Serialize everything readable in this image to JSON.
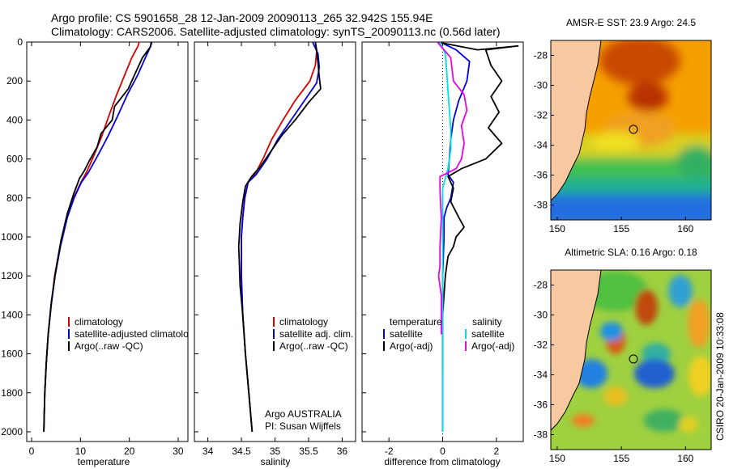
{
  "header": {
    "title_line1": "Argo profile: CS 5901658_28 12-Jan-2009 20090113_265 32.942S 155.94E",
    "title_line2": "Climatology: CARS2006. Satellite-adjusted climatology: synTS_20090113.nc (0.56d later)"
  },
  "colors": {
    "climatology": "#dd0000",
    "satellite": "#0000dd",
    "argo": "#000000",
    "sat_cyan": "#00e0e0",
    "argo_magenta": "#ee00ee",
    "land": "#f8c8a0"
  },
  "chart_data": [
    {
      "id": "temperature",
      "type": "line",
      "xlabel": "temperature",
      "ylabel": "",
      "xlim": [
        -1,
        32
      ],
      "ylim": [
        2050,
        0
      ],
      "xticks": [
        "0",
        "10",
        "20",
        "30"
      ],
      "xtick_values": [
        0,
        10,
        20,
        30
      ],
      "yticks": [
        "0",
        "200",
        "400",
        "600",
        "800",
        "1000",
        "1200",
        "1400",
        "1600",
        "1800",
        "2000"
      ],
      "ytick_values": [
        0,
        200,
        400,
        600,
        800,
        1000,
        1200,
        1400,
        1600,
        1800,
        2000
      ],
      "series": [
        {
          "name": "climatology",
          "color": "#dd0000",
          "points": [
            [
              22,
              0
            ],
            [
              21.8,
              20
            ],
            [
              20.5,
              80
            ],
            [
              19.2,
              160
            ],
            [
              17.4,
              270
            ],
            [
              15.8,
              380
            ],
            [
              14.4,
              480
            ],
            [
              12.8,
              580
            ],
            [
              11.2,
              670
            ],
            [
              10.1,
              720
            ],
            [
              8.6,
              800
            ],
            [
              7.2,
              900
            ],
            [
              5.8,
              1050
            ],
            [
              4.7,
              1200
            ],
            [
              4,
              1350
            ],
            [
              3.4,
              1500
            ],
            [
              3,
              1650
            ],
            [
              2.7,
              1800
            ],
            [
              2.5,
              2000
            ]
          ]
        },
        {
          "name": "satellite-adjusted climatology",
          "color": "#0000dd",
          "points": [
            [
              24.6,
              0
            ],
            [
              24.4,
              20
            ],
            [
              23.3,
              80
            ],
            [
              21.7,
              170
            ],
            [
              19.6,
              270
            ],
            [
              17.6,
              380
            ],
            [
              15.7,
              480
            ],
            [
              13.6,
              580
            ],
            [
              11.6,
              670
            ],
            [
              10.2,
              720
            ],
            [
              8.7,
              800
            ],
            [
              7.3,
              900
            ],
            [
              5.9,
              1050
            ],
            [
              4.8,
              1200
            ],
            [
              4,
              1350
            ],
            [
              3.4,
              1500
            ],
            [
              3,
              1650
            ],
            [
              2.7,
              1800
            ],
            [
              2.5,
              2000
            ]
          ]
        },
        {
          "name": "Argo(..raw -QC)",
          "color": "#000000",
          "points": [
            [
              24.5,
              0
            ],
            [
              24.3,
              25
            ],
            [
              22.7,
              80
            ],
            [
              21.4,
              150
            ],
            [
              19.8,
              240
            ],
            [
              17,
              330
            ],
            [
              16.5,
              400
            ],
            [
              14.2,
              470
            ],
            [
              13.4,
              540
            ],
            [
              11.8,
              610
            ],
            [
              10.8,
              660
            ],
            [
              9.8,
              700
            ],
            [
              8.6,
              780
            ],
            [
              7.3,
              880
            ],
            [
              6,
              1020
            ],
            [
              4.9,
              1180
            ],
            [
              4,
              1340
            ],
            [
              3.4,
              1500
            ],
            [
              3,
              1650
            ],
            [
              2.7,
              1800
            ],
            [
              2.5,
              2000
            ]
          ]
        }
      ],
      "legend_labels": [
        "climatology",
        "satellite-adjusted climatology",
        "Argo(..raw -QC)"
      ]
    },
    {
      "id": "salinity",
      "type": "line",
      "xlabel": "salinity",
      "xlim": [
        33.8,
        36.2
      ],
      "ylim": [
        2050,
        0
      ],
      "xticks": [
        "34",
        "34.5",
        "35",
        "35.5",
        "36"
      ],
      "xtick_values": [
        34,
        34.5,
        35,
        35.5,
        36
      ],
      "series": [
        {
          "name": "climatology",
          "color": "#dd0000",
          "points": [
            [
              35.6,
              0
            ],
            [
              35.62,
              50
            ],
            [
              35.6,
              120
            ],
            [
              35.52,
              200
            ],
            [
              35.3,
              300
            ],
            [
              35.12,
              400
            ],
            [
              34.95,
              500
            ],
            [
              34.82,
              600
            ],
            [
              34.7,
              680
            ],
            [
              34.6,
              720
            ],
            [
              34.55,
              800
            ],
            [
              34.52,
              900
            ],
            [
              34.5,
              1000
            ],
            [
              34.5,
              1100
            ],
            [
              34.5,
              1200
            ],
            [
              34.52,
              1400
            ],
            [
              34.56,
              1600
            ],
            [
              34.61,
              1800
            ],
            [
              34.66,
              2000
            ]
          ]
        },
        {
          "name": "satellite adj. clim.",
          "color": "#0000dd",
          "points": [
            [
              35.56,
              0
            ],
            [
              35.64,
              60
            ],
            [
              35.66,
              130
            ],
            [
              35.62,
              210
            ],
            [
              35.44,
              300
            ],
            [
              35.24,
              400
            ],
            [
              35.04,
              500
            ],
            [
              34.88,
              600
            ],
            [
              34.72,
              680
            ],
            [
              34.6,
              720
            ],
            [
              34.55,
              800
            ],
            [
              34.52,
              900
            ],
            [
              34.5,
              1000
            ],
            [
              34.5,
              1100
            ],
            [
              34.5,
              1200
            ],
            [
              34.52,
              1400
            ],
            [
              34.56,
              1600
            ],
            [
              34.61,
              1800
            ],
            [
              34.66,
              2000
            ]
          ]
        },
        {
          "name": "Argo(..raw -QC)",
          "color": "#000000",
          "points": [
            [
              35.6,
              0
            ],
            [
              35.62,
              40
            ],
            [
              35.64,
              110
            ],
            [
              35.66,
              180
            ],
            [
              35.68,
              240
            ],
            [
              35.5,
              310
            ],
            [
              35.3,
              400
            ],
            [
              35.1,
              480
            ],
            [
              34.92,
              570
            ],
            [
              34.78,
              640
            ],
            [
              34.65,
              690
            ],
            [
              34.56,
              740
            ],
            [
              34.52,
              820
            ],
            [
              34.48,
              930
            ],
            [
              34.46,
              1050
            ],
            [
              34.47,
              1150
            ],
            [
              34.48,
              1250
            ],
            [
              34.52,
              1400
            ],
            [
              34.56,
              1600
            ],
            [
              34.61,
              1800
            ],
            [
              34.66,
              2000
            ]
          ]
        }
      ],
      "legend_labels": [
        "climatology",
        "satellite adj. clim.",
        "Argo(..raw -QC)"
      ],
      "annotation": [
        "Argo AUSTRALIA",
        "PI: Susan Wijffels"
      ]
    },
    {
      "id": "difference",
      "type": "line",
      "xlabel": "difference from climatology",
      "xlim": [
        -3,
        3
      ],
      "ylim": [
        2050,
        0
      ],
      "xticks": [
        "-2",
        "0",
        "2"
      ],
      "xtick_values": [
        -2,
        0,
        2
      ],
      "zero_line": true,
      "series": [
        {
          "name": "temperature satellite",
          "color": "#0000dd",
          "points": [
            [
              -0.1,
              0
            ],
            [
              0.5,
              40
            ],
            [
              1,
              100
            ],
            [
              0.9,
              200
            ],
            [
              0.6,
              300
            ],
            [
              0.4,
              400
            ],
            [
              0.3,
              500
            ],
            [
              0.25,
              600
            ],
            [
              0.2,
              680
            ],
            [
              0.4,
              720
            ],
            [
              0.3,
              800
            ],
            [
              0.15,
              850
            ],
            [
              0.05,
              900
            ],
            [
              0.05,
              1000
            ],
            [
              0,
              1200
            ],
            [
              0,
              1500
            ],
            [
              0,
              2000
            ]
          ]
        },
        {
          "name": "temperature Argo(-adj)",
          "color": "#000000",
          "points": [
            [
              -0.2,
              0
            ],
            [
              1.3,
              40
            ],
            [
              2.8,
              20
            ],
            [
              1.6,
              40
            ],
            [
              1.8,
              120
            ],
            [
              2.2,
              200
            ],
            [
              1.8,
              280
            ],
            [
              2.1,
              360
            ],
            [
              1.7,
              440
            ],
            [
              2.2,
              520
            ],
            [
              1.6,
              600
            ],
            [
              0.7,
              650
            ],
            [
              0.2,
              690
            ],
            [
              0.4,
              750
            ],
            [
              0.3,
              820
            ],
            [
              0.6,
              900
            ],
            [
              0.8,
              950
            ],
            [
              0.5,
              1000
            ],
            [
              0.4,
              1050
            ],
            [
              0.2,
              1100
            ],
            [
              0.1,
              1200
            ],
            [
              0,
              1400
            ],
            [
              0,
              1600
            ],
            [
              0,
              1700
            ]
          ]
        },
        {
          "name": "salinity satellite",
          "color": "#00e0e0",
          "points": [
            [
              -0.1,
              0
            ],
            [
              0.1,
              60
            ],
            [
              0.15,
              150
            ],
            [
              0.2,
              250
            ],
            [
              0.25,
              350
            ],
            [
              0.3,
              450
            ],
            [
              0.3,
              550
            ],
            [
              0.2,
              650
            ],
            [
              0.1,
              700
            ],
            [
              0,
              750
            ],
            [
              0,
              900
            ],
            [
              0,
              1000
            ],
            [
              0,
              1300
            ],
            [
              0,
              1500
            ],
            [
              0,
              1800
            ],
            [
              0,
              2000
            ]
          ]
        },
        {
          "name": "salinity Argo(-adj)",
          "color": "#ee00ee",
          "points": [
            [
              -0.2,
              0
            ],
            [
              0.3,
              80
            ],
            [
              0.4,
              200
            ],
            [
              0.8,
              270
            ],
            [
              0.9,
              350
            ],
            [
              0.7,
              430
            ],
            [
              0.8,
              520
            ],
            [
              0.7,
              600
            ],
            [
              0.5,
              650
            ],
            [
              -0.1,
              690
            ],
            [
              -0.1,
              760
            ],
            [
              -0.05,
              900
            ],
            [
              -0.1,
              1050
            ],
            [
              -0.1,
              1150
            ],
            [
              -0.15,
              1200
            ],
            [
              -0.05,
              1300
            ],
            [
              -0.05,
              1400
            ],
            [
              -0.05,
              1500
            ]
          ]
        }
      ],
      "legend": {
        "temperature_head": "temperature",
        "salinity_head": "salinity",
        "satellite": "satellite",
        "argo": "Argo(-adj)"
      }
    },
    {
      "id": "sst_map",
      "type": "heatmap",
      "title": "AMSR-E SST: 23.9 Argo: 24.5",
      "xlim": [
        149.5,
        162
      ],
      "ylim": [
        -39,
        -27
      ],
      "xticks": [
        "150",
        "155",
        "160"
      ],
      "xtick_values": [
        150,
        155,
        160
      ],
      "yticks": [
        "-28",
        "-30",
        "-32",
        "-34",
        "-36",
        "-38"
      ],
      "ytick_values": [
        -28,
        -30,
        -32,
        -34,
        -36,
        -38
      ],
      "marker": [
        155.94,
        -32.942
      ]
    },
    {
      "id": "sla_map",
      "type": "heatmap",
      "title": "Altimetric SLA: 0.16 Argo: 0.18",
      "xlim": [
        149.5,
        162
      ],
      "ylim": [
        -39,
        -27
      ],
      "xticks": [
        "150",
        "155",
        "160"
      ],
      "xtick_values": [
        150,
        155,
        160
      ],
      "yticks": [
        "-28",
        "-30",
        "-32",
        "-34",
        "-36",
        "-38"
      ],
      "ytick_values": [
        -28,
        -30,
        -32,
        -34,
        -36,
        -38
      ],
      "marker": [
        155.94,
        -32.942
      ]
    }
  ],
  "footer": {
    "credit": "CSIRO 20-Jan-2009 10:33:08"
  }
}
